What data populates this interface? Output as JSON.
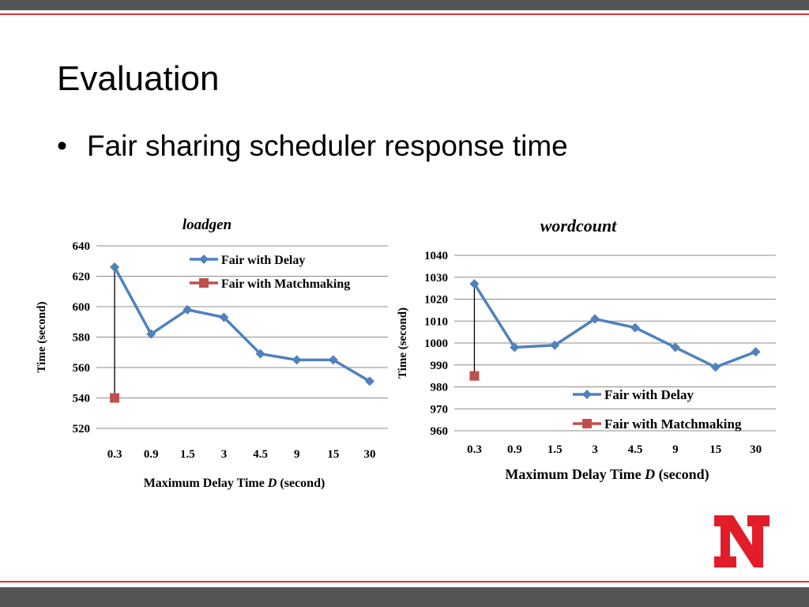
{
  "slide": {
    "title": "Evaluation",
    "bullet_marker": "•",
    "bullet": "Fair sharing scheduler response time"
  },
  "colors": {
    "bar": "#555555",
    "accent": "#d6343b",
    "series_delay": "#4f81bd",
    "series_matchmaking": "#c0504d",
    "logo": "#e11d2a"
  },
  "logo": {
    "icon": "university-n-logo"
  },
  "chart_data": [
    {
      "type": "line",
      "title": "loadgen",
      "xlabel": "Maximum Delay Time D (second)",
      "ylabel": "Time  (second)",
      "categories": [
        "0.3",
        "0.9",
        "1.5",
        "3",
        "4.5",
        "9",
        "15",
        "30"
      ],
      "ylim": [
        520,
        640
      ],
      "yticks": [
        520,
        540,
        560,
        580,
        600,
        620,
        640
      ],
      "grid": true,
      "legend": "top-right",
      "series": [
        {
          "name": "Fair with Delay",
          "values": [
            626,
            582,
            598,
            593,
            569,
            565,
            565,
            551
          ]
        },
        {
          "name": "Fair with Matchmaking",
          "values": [
            540,
            null,
            null,
            null,
            null,
            null,
            null,
            null
          ]
        }
      ]
    },
    {
      "type": "line",
      "title": "wordcount",
      "xlabel": "Maximum Delay Time D (second)",
      "ylabel": "Time (second)",
      "categories": [
        "0.3",
        "0.9",
        "1.5",
        "3",
        "4.5",
        "9",
        "15",
        "30"
      ],
      "ylim": [
        960,
        1040
      ],
      "yticks": [
        960,
        970,
        980,
        990,
        1000,
        1010,
        1020,
        1030,
        1040
      ],
      "grid": true,
      "legend": "bottom-right",
      "series": [
        {
          "name": "Fair with Delay",
          "values": [
            1027,
            998,
            999,
            1011,
            1007,
            998,
            989,
            996
          ]
        },
        {
          "name": "Fair with Matchmaking",
          "values": [
            985,
            null,
            null,
            null,
            null,
            null,
            null,
            null
          ]
        }
      ]
    }
  ]
}
